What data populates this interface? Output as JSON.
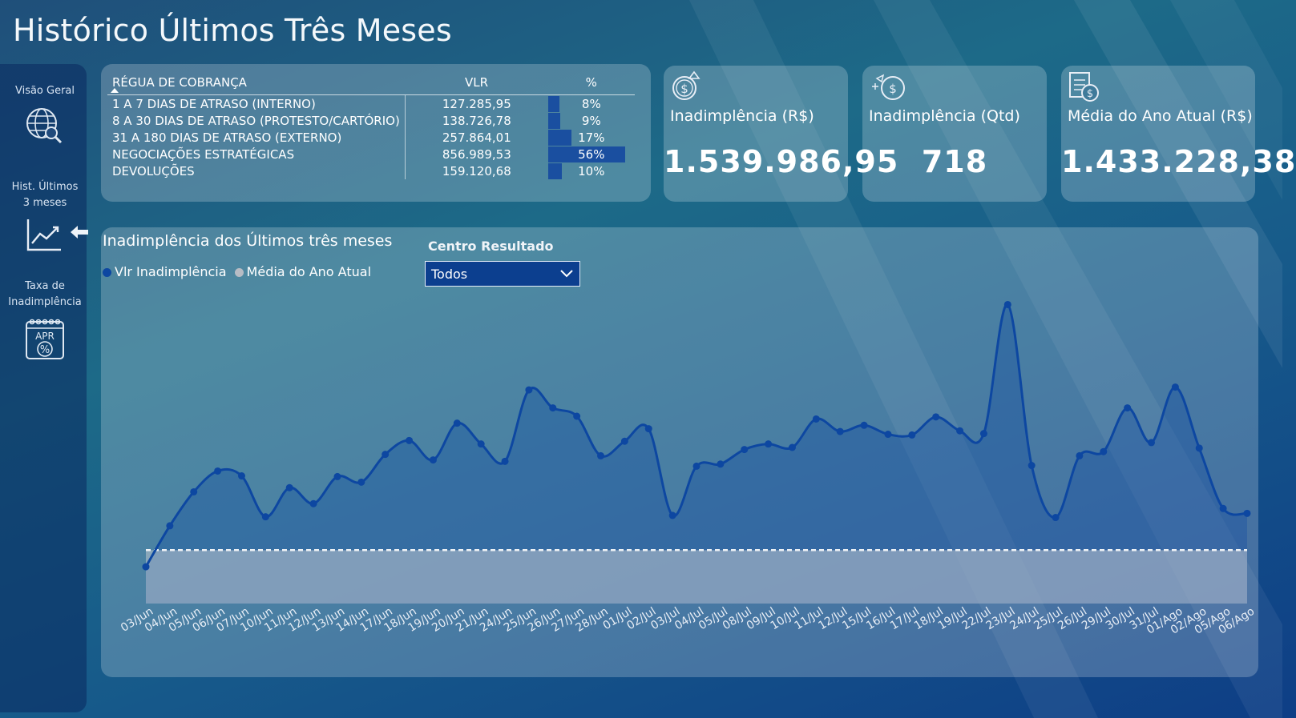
{
  "page_title": "Histórico Últimos Três Meses",
  "sidebar": {
    "items": [
      {
        "label": "Visão Geral",
        "icon": "globe-search-icon"
      },
      {
        "label_line1": "Hist. Últimos",
        "label_line2": "3 meses",
        "icon": "trend-chart-icon"
      },
      {
        "label_line1": "Taxa de",
        "label_line2": "Inadimplência",
        "icon": "calendar-percent-icon",
        "icon_text": "APR"
      }
    ]
  },
  "table": {
    "headers": [
      "RÉGUA DE COBRANÇA",
      "VLR",
      "%"
    ],
    "rows": [
      {
        "desc": "1 A 7 DIAS DE ATRASO (INTERNO)",
        "vlr": "127.285,95",
        "pct": "8%",
        "pct_value": 8
      },
      {
        "desc": "8 A 30 DIAS DE ATRASO (PROTESTO/CARTÓRIO)",
        "vlr": "138.726,78",
        "pct": "9%",
        "pct_value": 9
      },
      {
        "desc": "31 A 180 DIAS DE ATRASO (EXTERNO)",
        "vlr": "257.864,01",
        "pct": "17%",
        "pct_value": 17
      },
      {
        "desc": "NEGOCIAÇÕES ESTRATÉGICAS",
        "vlr": "856.989,53",
        "pct": "56%",
        "pct_value": 56
      },
      {
        "desc": "DEVOLUÇÕES",
        "vlr": "159.120,68",
        "pct": "10%",
        "pct_value": 10
      }
    ]
  },
  "kpis": [
    {
      "label": "Inadimplência (R$)",
      "value": "1.539.986,95",
      "icon": "money-bag-icon"
    },
    {
      "label": "Inadimplência (Qtd)",
      "value": "718",
      "icon": "coin-bag-icon"
    },
    {
      "label": "Média do Ano Atual (R$)",
      "value": "1.433.228,38",
      "icon": "invoice-icon"
    }
  ],
  "chart": {
    "title": "Inadimplência dos Últimos três meses",
    "legend": [
      "Vlr Inadimplência",
      "Média do Ano Atual"
    ],
    "filter_label": "Centro Resultado",
    "filter_value": "Todos",
    "colors": {
      "series": "#0d47a1",
      "average": "#b8bcc4"
    }
  },
  "chart_data": {
    "type": "area",
    "categories": [
      "03/Jun",
      "04/Jun",
      "05/Jun",
      "06/Jun",
      "07/Jun",
      "10/Jun",
      "11/Jun",
      "12/Jun",
      "13/Jun",
      "14/Jun",
      "17/Jun",
      "18/Jun",
      "19/Jun",
      "20/Jun",
      "21/Jun",
      "24/Jun",
      "25/Jun",
      "26/Jun",
      "27/Jun",
      "28/Jun",
      "01/Jul",
      "02/Jul",
      "03/Jul",
      "04/Jul",
      "05/Jul",
      "08/Jul",
      "09/Jul",
      "10/Jul",
      "11/Jul",
      "12/Jul",
      "15/Jul",
      "16/Jul",
      "17/Jul",
      "18/Jul",
      "19/Jul",
      "22/Jul",
      "23/Jul",
      "24/Jul",
      "25/Jul",
      "26/Jul",
      "29/Jul",
      "30/Jul",
      "31/Jul",
      "01/Ago",
      "02/Ago",
      "05/Ago",
      "06/Ago"
    ],
    "series": [
      {
        "name": "Vlr Inadimplência",
        "values": [
          3,
          62,
          111,
          141,
          134,
          75,
          117,
          94,
          133,
          125,
          165,
          185,
          157,
          210,
          180,
          155,
          258,
          232,
          220,
          163,
          184,
          202,
          77,
          148,
          151,
          172,
          180,
          175,
          216,
          198,
          207,
          194,
          193,
          219,
          199,
          195,
          381,
          149,
          74,
          163,
          169,
          232,
          182,
          262,
          174,
          87,
          80
        ]
      },
      {
        "name": "Média do Ano Atual",
        "values": [
          27,
          27,
          27,
          27,
          27,
          27,
          27,
          27,
          27,
          27,
          27,
          27,
          27,
          27,
          27,
          27,
          27,
          27,
          27,
          27,
          27,
          27,
          27,
          27,
          27,
          27,
          27,
          27,
          27,
          27,
          27,
          27,
          27,
          27,
          27,
          27,
          27,
          27,
          27,
          27,
          27,
          27,
          27,
          27,
          27,
          27,
          27
        ]
      }
    ],
    "ylim": [
      -50,
      400
    ]
  }
}
